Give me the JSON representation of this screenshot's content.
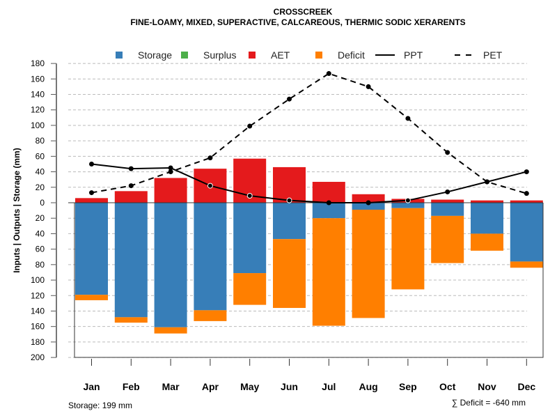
{
  "chart_data": {
    "type": "bar",
    "title": "CROSSCREEK",
    "subtitle": "FINE-LOAMY, MIXED, SUPERACTIVE, CALCAREOUS, THERMIC SODIC XERARENTS",
    "ylabel": "Inputs | Outputs | Storage    (mm)",
    "ylim": [
      -200,
      180
    ],
    "yticks": [
      180,
      160,
      140,
      120,
      100,
      80,
      60,
      40,
      20,
      0,
      -20,
      -40,
      -60,
      -80,
      -100,
      -120,
      -140,
      -160,
      -180,
      -200
    ],
    "ytick_labels": [
      "180",
      "160",
      "140",
      "120",
      "100",
      "80",
      "60",
      "40",
      "20",
      "0",
      "20",
      "40",
      "60",
      "80",
      "100",
      "120",
      "140",
      "160",
      "180",
      "200"
    ],
    "categories": [
      "Jan",
      "Feb",
      "Mar",
      "Apr",
      "May",
      "Jun",
      "Jul",
      "Aug",
      "Sep",
      "Oct",
      "Nov",
      "Dec"
    ],
    "legend": [
      {
        "name": "Storage",
        "kind": "box",
        "color": "#377EB8"
      },
      {
        "name": "Surplus",
        "kind": "box",
        "color": "#4DAF4A"
      },
      {
        "name": "AET",
        "kind": "box",
        "color": "#E41A1C"
      },
      {
        "name": "Deficit",
        "kind": "box",
        "color": "#FF7F00"
      },
      {
        "name": "PPT",
        "kind": "solid",
        "color": "#000000"
      },
      {
        "name": "PET",
        "kind": "dashed",
        "color": "#000000"
      }
    ],
    "legend_position": "top",
    "series": [
      {
        "name": "AET",
        "values": [
          6,
          15,
          32,
          44,
          57,
          46,
          27,
          11,
          5,
          4,
          3,
          3
        ]
      },
      {
        "name": "Surplus",
        "values": [
          0,
          0,
          0,
          0,
          0,
          0,
          0,
          0,
          0,
          0,
          0,
          0
        ]
      },
      {
        "name": "Storage",
        "values": [
          -119,
          -148,
          -161,
          -139,
          -91,
          -47,
          -20,
          -9,
          -7,
          -17,
          -40,
          -76
        ]
      },
      {
        "name": "Deficit",
        "values": [
          -7,
          -7,
          -8,
          -14,
          -41,
          -89,
          -139,
          -140,
          -105,
          -61,
          -22,
          -8
        ]
      },
      {
        "name": "PPT",
        "values": [
          50,
          44,
          45,
          22,
          9,
          3,
          0,
          0,
          3,
          14,
          27,
          40
        ]
      },
      {
        "name": "PET",
        "values": [
          13,
          22,
          40,
          58,
          99,
          134,
          167,
          150,
          109,
          65,
          27,
          12
        ]
      }
    ],
    "grid": true
  },
  "footer": {
    "storage": "Storage: 199 mm",
    "deficit": "∑ Deficit = -640 mm"
  }
}
